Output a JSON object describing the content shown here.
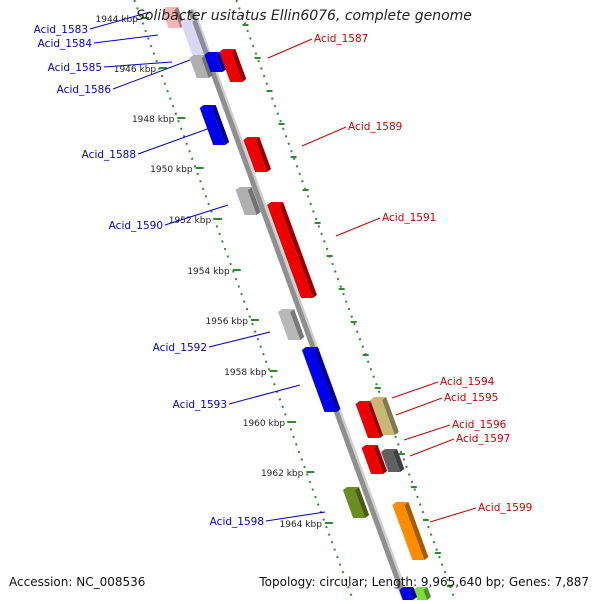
{
  "title": "Solibacter usitatus Ellin6076, complete genome",
  "footer": {
    "accession": "Accession: NC_008536",
    "topology": "Topology: circular; Length: 9,965,640 bp; Genes: 7,887"
  },
  "colors": {
    "axis": "#8f8f8f",
    "tick_line": "#2e8b2e",
    "label_minus_strand": "#0000cc",
    "label_plus_strand": "#cc0000"
  },
  "scale_ticks": [
    "1944 kbp",
    "1946 kbp",
    "1948 kbp",
    "1950 kbp",
    "1952 kbp",
    "1954 kbp",
    "1956 kbp",
    "1958 kbp",
    "1960 kbp",
    "1962 kbp",
    "1964 kbp"
  ],
  "genes_left": [
    {
      "label": "Acid_1583",
      "color": "#f5b3b3"
    },
    {
      "label": "Acid_1584",
      "color": "#d8d8f2"
    },
    {
      "label": "Acid_1585",
      "color": "#b0b0b0"
    },
    {
      "label": "Acid_1586",
      "color": "#0000ee"
    },
    {
      "label": "Acid_1588",
      "color": "#0000ee"
    },
    {
      "label": "Acid_1590",
      "color": "#b0b0b0"
    },
    {
      "label": "Acid_1592",
      "color": "#b8b8b8"
    },
    {
      "label": "Acid_1593",
      "color": "#0000ee"
    },
    {
      "label": "Acid_1598",
      "color": "#6b8e23"
    }
  ],
  "genes_right": [
    {
      "label": "Acid_1587",
      "color": "#ee0000"
    },
    {
      "label": "Acid_1589",
      "color": "#ee0000"
    },
    {
      "label": "Acid_1591",
      "color": "#ee0000"
    },
    {
      "label": "Acid_1594",
      "color": "#ee0000"
    },
    {
      "label": "Acid_1595",
      "color": "#c8b878"
    },
    {
      "label": "Acid_1596",
      "color": "#ee0000"
    },
    {
      "label": "Acid_1597",
      "color": "#606060"
    },
    {
      "label": "Acid_1599",
      "color": "#ff8c00"
    }
  ]
}
